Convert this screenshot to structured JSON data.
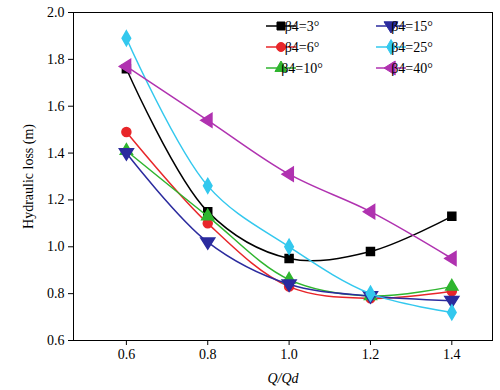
{
  "chart_data": {
    "type": "line",
    "x_label": "Q/Qd",
    "y_label": "Hydraulic loss (m)",
    "x": [
      0.6,
      0.8,
      1.0,
      1.2,
      1.4
    ],
    "series": [
      {
        "name": "β4=3°",
        "color": "#000000",
        "marker": "square",
        "line_style": "solid",
        "values": [
          1.76,
          1.15,
          0.95,
          0.98,
          1.13
        ]
      },
      {
        "name": "β4=6°",
        "color": "#e8262a",
        "marker": "circle",
        "line_style": "solid",
        "values": [
          1.49,
          1.1,
          0.83,
          0.78,
          0.81
        ]
      },
      {
        "name": "β4=10°",
        "color": "#2fb52f",
        "marker": "triangle-up",
        "line_style": "solid",
        "values": [
          1.41,
          1.13,
          0.86,
          0.79,
          0.83
        ]
      },
      {
        "name": "β4=15°",
        "color": "#2b2b9e",
        "marker": "triangle-down",
        "line_style": "solid",
        "values": [
          1.4,
          1.02,
          0.84,
          0.79,
          0.77
        ]
      },
      {
        "name": "β4=25°",
        "color": "#33c8ee",
        "marker": "diamond",
        "line_style": "solid",
        "values": [
          1.89,
          1.26,
          1.0,
          0.8,
          0.72
        ]
      },
      {
        "name": "β4=40°",
        "color": "#b032b0",
        "marker": "triangle-left",
        "line_style": "solid",
        "values": [
          1.77,
          1.54,
          1.31,
          1.15,
          0.95
        ]
      }
    ],
    "xlim": [
      0.47,
      1.5
    ],
    "xticks": [
      0.6,
      0.8,
      {
        "value": 1.0,
        "label": "1.0"
      },
      1.2,
      1.4
    ],
    "ylim": [
      0.6,
      2.0
    ],
    "yticks": [
      0.6,
      0.8,
      {
        "value": 1.0,
        "label": "1.0"
      },
      1.2,
      1.4,
      1.6,
      1.8,
      {
        "value": 2.0,
        "label": "2.0"
      }
    ],
    "legend": "top-right",
    "grid": false
  }
}
